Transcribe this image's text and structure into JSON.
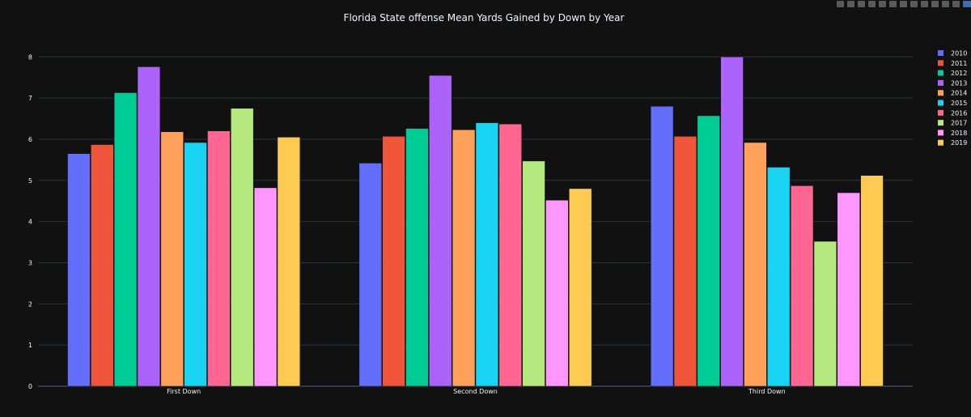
{
  "chart_data": {
    "type": "bar",
    "title": "Florida State offense Mean Yards Gained by Down by Year",
    "xlabel": "",
    "ylabel": "",
    "categories": [
      "First Down",
      "Second Down",
      "Third Down"
    ],
    "ylim": [
      0,
      8.3
    ],
    "yticks": [
      0,
      1,
      2,
      3,
      4,
      5,
      6,
      7,
      8
    ],
    "grid": true,
    "legend_position": "right",
    "background": "#111111",
    "series": [
      {
        "name": "2010",
        "color": "#636efa",
        "values": [
          5.65,
          5.42,
          6.8
        ]
      },
      {
        "name": "2011",
        "color": "#ef553b",
        "values": [
          5.87,
          6.07,
          6.07
        ]
      },
      {
        "name": "2012",
        "color": "#00cc96",
        "values": [
          7.13,
          6.26,
          6.57
        ]
      },
      {
        "name": "2013",
        "color": "#ab63fa",
        "values": [
          7.76,
          7.55,
          8.0
        ]
      },
      {
        "name": "2014",
        "color": "#ffa15a",
        "values": [
          6.18,
          6.23,
          5.92
        ]
      },
      {
        "name": "2015",
        "color": "#19d3f3",
        "values": [
          5.92,
          6.4,
          5.32
        ]
      },
      {
        "name": "2016",
        "color": "#ff6692",
        "values": [
          6.2,
          6.37,
          4.87
        ]
      },
      {
        "name": "2017",
        "color": "#b6e880",
        "values": [
          6.75,
          5.47,
          3.52
        ]
      },
      {
        "name": "2018",
        "color": "#ff97ff",
        "values": [
          4.82,
          4.52,
          4.7
        ]
      },
      {
        "name": "2019",
        "color": "#fecb52",
        "values": [
          6.05,
          4.8,
          5.12
        ]
      }
    ]
  },
  "modebar": {
    "icons": [
      "camera-icon",
      "zoom-icon",
      "pan-icon",
      "box-select-icon",
      "lasso-icon",
      "zoom-in-icon",
      "zoom-out-icon",
      "autoscale-icon",
      "reset-axes-icon",
      "spike-icon",
      "hover-closest-icon",
      "hover-compare-icon",
      "plotly-logo-icon"
    ]
  }
}
